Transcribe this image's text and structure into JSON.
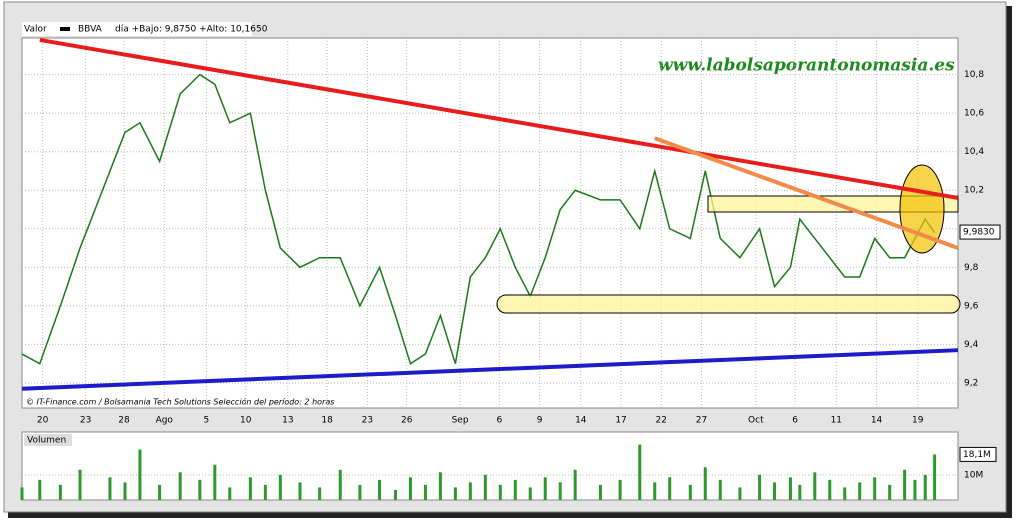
{
  "chart_data": [
    {
      "type": "line",
      "header": [
        "Valor",
        "BBVA",
        "día +Bajo: 9,8750 +Alto: 10,1650"
      ],
      "watermark": "www.labolsaporantonomasia.es",
      "footer": "© IT-Finance.com / Bolsamania Tech Solutions  Selección del período: 2 horas",
      "x": [
        0,
        1.9,
        4.1,
        6.2,
        9.4,
        11,
        12.6,
        14.7,
        16.9,
        19,
        20.6,
        22.2,
        24.4,
        26,
        27.6,
        29.7,
        31.8,
        34,
        36.1,
        38.2,
        39.9,
        41.5,
        43.1,
        44.7,
        46.3,
        47.9,
        49.5,
        51.1,
        52.7,
        54.3,
        55.9,
        57.5,
        59.1,
        61.8,
        63.9,
        66,
        67.6,
        69.2,
        71.4,
        73,
        74.6,
        76.7,
        78.8,
        80.4,
        82.1,
        83.1,
        84.7,
        86.3,
        87.9,
        89.5,
        91.1,
        92.7,
        94.3,
        95.4,
        96.5,
        97.5
      ],
      "series": [
        {
          "name": "BBVA",
          "color": "#1a7a1a",
          "values": [
            9.35,
            9.3,
            9.6,
            9.9,
            10.3,
            10.5,
            10.55,
            10.35,
            10.7,
            10.8,
            10.75,
            10.55,
            10.6,
            10.2,
            9.9,
            9.8,
            9.85,
            9.85,
            9.6,
            9.8,
            9.55,
            9.3,
            9.35,
            9.55,
            9.3,
            9.75,
            9.85,
            10.0,
            9.8,
            9.65,
            9.85,
            10.1,
            10.2,
            10.15,
            10.15,
            10.0,
            10.3,
            10.0,
            9.95,
            10.3,
            9.95,
            9.85,
            10.0,
            9.7,
            9.8,
            10.05,
            9.95,
            9.85,
            9.75,
            9.75,
            9.95,
            9.85,
            9.85,
            9.95,
            10.05,
            9.98
          ]
        }
      ],
      "last_value": 9.983,
      "last_label": "9,9830",
      "trendlines": [
        {
          "x": [
            1.9,
            100
          ],
          "y": [
            10.98,
            10.16
          ],
          "color": "#e81c1c"
        },
        {
          "x": [
            0,
            100
          ],
          "y": [
            9.17,
            9.37
          ],
          "color": "#1c1cc8"
        },
        {
          "x": [
            67.6,
            100
          ],
          "y": [
            10.47,
            9.9
          ],
          "color": "#f28a4a"
        }
      ],
      "xlim": [
        0,
        100
      ],
      "ylim": [
        9.07,
        10.99
      ],
      "xticks": [
        {
          "value": 2.2,
          "label": "20"
        },
        {
          "value": 6.8,
          "label": "23"
        },
        {
          "value": 10.9,
          "label": "28"
        },
        {
          "value": 15.2,
          "label": "Ago"
        },
        {
          "value": 19.7,
          "label": "5"
        },
        {
          "value": 23.9,
          "label": "10"
        },
        {
          "value": 28.4,
          "label": "13"
        },
        {
          "value": 32.6,
          "label": "18"
        },
        {
          "value": 36.9,
          "label": "23"
        },
        {
          "value": 41.1,
          "label": "26"
        },
        {
          "value": 46.8,
          "label": "Sep"
        },
        {
          "value": 51,
          "label": "6"
        },
        {
          "value": 55.3,
          "label": "9"
        },
        {
          "value": 59.7,
          "label": "14"
        },
        {
          "value": 64,
          "label": "17"
        },
        {
          "value": 68.3,
          "label": "22"
        },
        {
          "value": 72.6,
          "label": "27"
        },
        {
          "value": 78.4,
          "label": "Oct"
        },
        {
          "value": 82.6,
          "label": "6"
        },
        {
          "value": 87,
          "label": "11"
        },
        {
          "value": 91.3,
          "label": "14"
        },
        {
          "value": 95.7,
          "label": "19"
        }
      ],
      "yticks": [
        {
          "value": 9.2,
          "label": "9,2"
        },
        {
          "value": 9.4,
          "label": "9,4"
        },
        {
          "value": 9.6,
          "label": "9,6"
        },
        {
          "value": 9.8,
          "label": "9,8"
        },
        {
          "value": 10.0,
          "label": "10,0"
        },
        {
          "value": 10.2,
          "label": "10,2"
        },
        {
          "value": 10.4,
          "label": "10,4"
        },
        {
          "value": 10.6,
          "label": "10,6"
        },
        {
          "value": 10.8,
          "label": "10,8"
        }
      ],
      "grid": true
    },
    {
      "type": "bar",
      "title": "Volumen",
      "color": "#2e9a2e",
      "x": [
        0,
        1.9,
        4.1,
        6.2,
        9.4,
        11,
        12.6,
        14.7,
        16.9,
        19,
        20.6,
        22.2,
        24.4,
        26,
        27.6,
        29.7,
        31.8,
        34,
        36.1,
        38.2,
        39.9,
        41.5,
        43.1,
        44.7,
        46.3,
        47.9,
        49.5,
        51.1,
        52.7,
        54.3,
        55.9,
        57.5,
        59.1,
        61.8,
        63.9,
        66,
        67.6,
        69.2,
        71.4,
        73,
        74.6,
        76.7,
        78.8,
        80.4,
        82.1,
        83.1,
        84.7,
        86.3,
        87.9,
        89.5,
        91.1,
        92.7,
        94.3,
        95.4,
        96.5,
        97.5
      ],
      "values": [
        5,
        8,
        6,
        12,
        9,
        7,
        20,
        6,
        11,
        8,
        14,
        5,
        9,
        6,
        10,
        7,
        5,
        12,
        6,
        8,
        4,
        9,
        6,
        11,
        5,
        7,
        10,
        6,
        8,
        5,
        9,
        7,
        12,
        6,
        8,
        22,
        7,
        9,
        6,
        13,
        8,
        5,
        10,
        7,
        9,
        6,
        11,
        8,
        5,
        7,
        9,
        6,
        12,
        8,
        10,
        18.1
      ],
      "last_label": "18,1M",
      "xlim": [
        0,
        100
      ],
      "ylim": [
        0,
        27
      ],
      "yticks": [
        {
          "value": 10,
          "label": "10M"
        }
      ]
    }
  ]
}
